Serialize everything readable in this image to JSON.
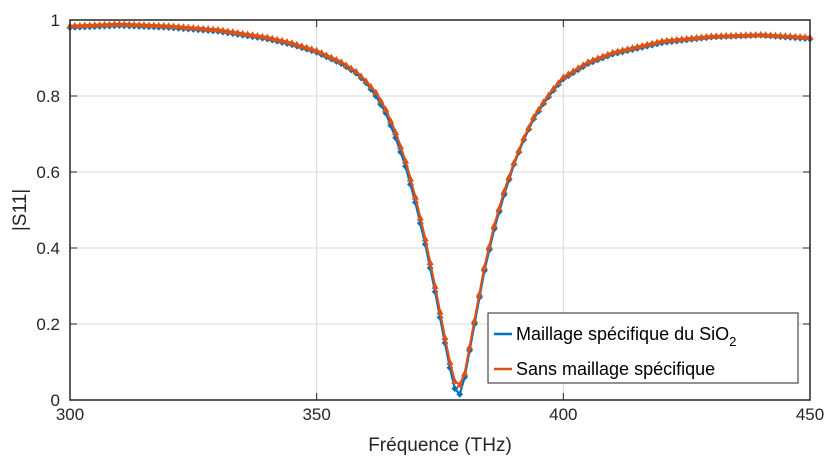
{
  "chart_data": {
    "type": "line",
    "xlabel": "Fréquence (THz)",
    "ylabel": "|S11|",
    "xlim": [
      300,
      450
    ],
    "ylim": [
      0,
      1
    ],
    "xticks": [
      300,
      350,
      400,
      450
    ],
    "yticks": [
      0,
      0.2,
      0.4,
      0.6,
      0.8,
      1
    ],
    "xtick_labels": [
      "300",
      "350",
      "400",
      "450"
    ],
    "ytick_labels": [
      "0",
      "0.2",
      "0.4",
      "0.6",
      "0.8",
      "1"
    ],
    "grid": true,
    "legend_position": "bottom-right",
    "series": [
      {
        "name": "Maillage spécifique du SiO₂",
        "legend_main": "Maillage spécifique du SiO",
        "legend_sub": "2",
        "color": "#0072BD",
        "marker": "diamond",
        "x": [
          300,
          310,
          320,
          330,
          340,
          345,
          350,
          355,
          358,
          360,
          362,
          364,
          366,
          368,
          370,
          372,
          374,
          376,
          377,
          378,
          379,
          380,
          381,
          382,
          383,
          384,
          386,
          388,
          390,
          392,
          394,
          396,
          398,
          400,
          405,
          410,
          415,
          420,
          430,
          440,
          450
        ],
        "y": [
          0.98,
          0.985,
          0.98,
          0.97,
          0.95,
          0.935,
          0.915,
          0.885,
          0.86,
          0.835,
          0.8,
          0.755,
          0.69,
          0.615,
          0.52,
          0.41,
          0.285,
          0.15,
          0.085,
          0.03,
          0.015,
          0.06,
          0.13,
          0.2,
          0.27,
          0.34,
          0.45,
          0.54,
          0.62,
          0.685,
          0.74,
          0.78,
          0.815,
          0.845,
          0.885,
          0.91,
          0.925,
          0.94,
          0.955,
          0.96,
          0.95
        ]
      },
      {
        "name": "Sans maillage spécifique",
        "legend_main": "Sans maillage spécifique",
        "legend_sub": "",
        "color": "#D95319",
        "marker": "triangle",
        "x": [
          300,
          310,
          320,
          330,
          340,
          345,
          350,
          355,
          358,
          360,
          362,
          364,
          366,
          368,
          370,
          372,
          374,
          376,
          377,
          378,
          379,
          380,
          381,
          382,
          383,
          384,
          386,
          388,
          390,
          392,
          394,
          396,
          398,
          400,
          405,
          410,
          415,
          420,
          430,
          440,
          450
        ],
        "y": [
          0.985,
          0.99,
          0.985,
          0.975,
          0.955,
          0.94,
          0.92,
          0.89,
          0.865,
          0.84,
          0.81,
          0.765,
          0.705,
          0.63,
          0.535,
          0.425,
          0.3,
          0.165,
          0.1,
          0.05,
          0.04,
          0.07,
          0.14,
          0.21,
          0.28,
          0.35,
          0.46,
          0.55,
          0.625,
          0.69,
          0.745,
          0.785,
          0.82,
          0.85,
          0.89,
          0.915,
          0.93,
          0.945,
          0.958,
          0.962,
          0.955
        ]
      }
    ]
  }
}
